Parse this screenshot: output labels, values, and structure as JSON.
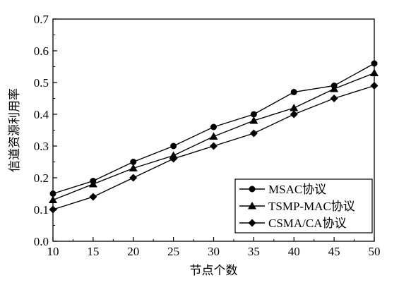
{
  "chart_data": {
    "type": "line",
    "xlabel": "节点个数",
    "ylabel": "信道资源利用率",
    "xlim": [
      10,
      50
    ],
    "ylim": [
      0.0,
      0.7
    ],
    "x_ticks": [
      10,
      15,
      20,
      25,
      30,
      35,
      40,
      45,
      50
    ],
    "y_ticks": [
      "0.0",
      "0.1",
      "0.2",
      "0.3",
      "0.4",
      "0.5",
      "0.6",
      "0.7"
    ],
    "x": [
      10,
      15,
      20,
      25,
      30,
      35,
      40,
      45,
      50
    ],
    "grid": false,
    "legend_position": "bottom-right",
    "series": [
      {
        "name": "MSAC协议",
        "marker": "circle",
        "values": [
          0.15,
          0.19,
          0.25,
          0.3,
          0.36,
          0.4,
          0.47,
          0.49,
          0.56
        ]
      },
      {
        "name": "TSMP-MAC协议",
        "marker": "triangle",
        "values": [
          0.13,
          0.18,
          0.23,
          0.27,
          0.33,
          0.38,
          0.42,
          0.48,
          0.53
        ]
      },
      {
        "name": "CSMA/CA协议",
        "marker": "diamond",
        "values": [
          0.1,
          0.14,
          0.2,
          0.26,
          0.3,
          0.34,
          0.4,
          0.45,
          0.49
        ]
      }
    ],
    "colors": {
      "line": "#000000",
      "marker": "#000000",
      "axis": "#000000"
    }
  }
}
